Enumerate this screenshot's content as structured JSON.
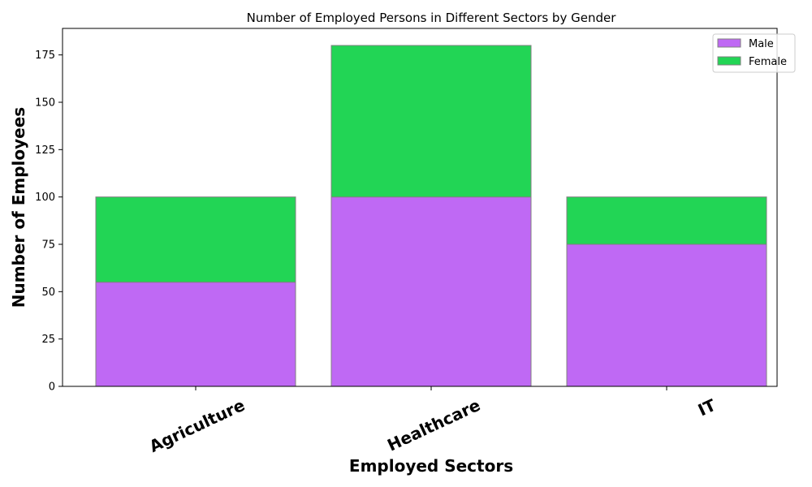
{
  "chart_data": {
    "type": "bar",
    "stacked": true,
    "title": "Number of Employed Persons in Different Sectors by Gender",
    "xlabel": "Employed Sectors",
    "ylabel": "Number of Employees",
    "categories": [
      "Agriculture",
      "Healthcare",
      "IT"
    ],
    "series": [
      {
        "name": "Male",
        "values": [
          55,
          100,
          75
        ],
        "color": "#bf69f4"
      },
      {
        "name": "Female",
        "values": [
          45,
          80,
          25
        ],
        "color": "#22d555"
      }
    ],
    "ylim": [
      0,
      189
    ],
    "yticks": [
      "0",
      "25",
      "50",
      "75",
      "100",
      "125",
      "150",
      "175"
    ],
    "grid": false,
    "legend_position": "top-right",
    "edge_color": "#808080"
  }
}
